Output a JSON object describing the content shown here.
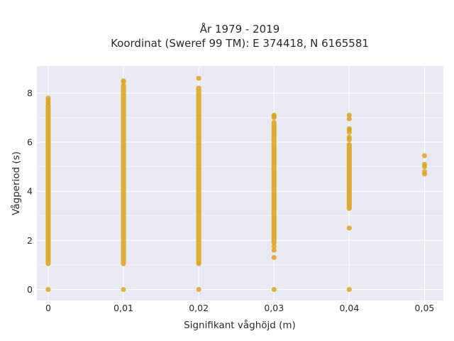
{
  "chart_data": {
    "type": "scatter",
    "title_line1": "År 1979 - 2019",
    "title_line2": "Koordinat (Sweref 99 TM): E 374418, N 6165581",
    "xlabel": "Signifikant våghöjd (m)",
    "ylabel": "Vågperiod (s)",
    "x_ticks": [
      "0",
      "0,01",
      "0,02",
      "0,03",
      "0,04",
      "0,05"
    ],
    "y_ticks": [
      "0",
      "2",
      "4",
      "6",
      "8"
    ],
    "xlim": [
      -0.0015,
      0.0525
    ],
    "ylim": [
      -0.45,
      9.1
    ],
    "grid": true,
    "marker_color": "#DAA520",
    "background_color": "#E9E9F2",
    "grid_color": "#FFFFFF",
    "series": [
      {
        "x": 0,
        "ranges": [
          [
            1.05,
            7.5
          ]
        ],
        "points": [
          0,
          7.6,
          7.7,
          7.8
        ]
      },
      {
        "x": 0.01,
        "ranges": [
          [
            1.05,
            8.3
          ]
        ],
        "points": [
          0,
          8.45,
          8.5
        ]
      },
      {
        "x": 0.02,
        "ranges": [
          [
            1.1,
            8.2
          ]
        ],
        "points": [
          0,
          1.05,
          8.6
        ]
      },
      {
        "x": 0.03,
        "ranges": [
          [
            1.9,
            6.8
          ]
        ],
        "points": [
          0,
          1.3,
          1.6,
          1.75,
          7.0,
          7.05,
          7.1
        ]
      },
      {
        "x": 0.04,
        "ranges": [
          [
            3.3,
            5.9
          ]
        ],
        "points": [
          0,
          2.5,
          6.1,
          6.2,
          6.4,
          6.5,
          6.55,
          6.95,
          7.1
        ]
      },
      {
        "x": 0.05,
        "ranges": [],
        "points": [
          4.7,
          4.8,
          5.0,
          5.1,
          5.45
        ]
      }
    ]
  }
}
